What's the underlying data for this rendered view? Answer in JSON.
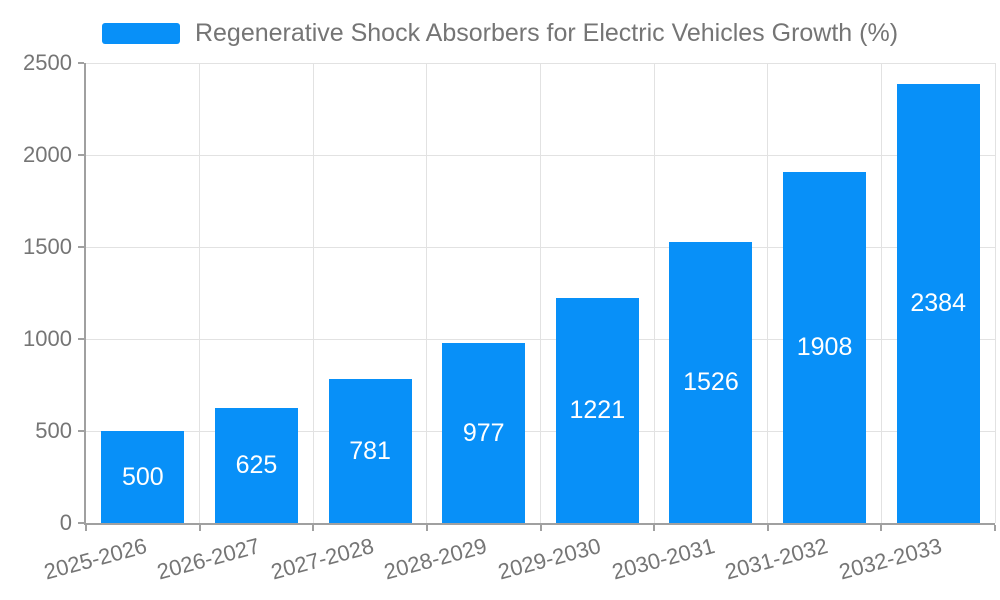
{
  "chart_data": {
    "type": "bar",
    "legend": {
      "label": "Regenerative Shock Absorbers for Electric Vehicles Growth (%)",
      "position": "top"
    },
    "categories": [
      "2025-2026",
      "2026-2027",
      "2027-2028",
      "2028-2029",
      "2029-2030",
      "2030-2031",
      "2031-2032",
      "2032-2033"
    ],
    "values": [
      500,
      625,
      781,
      977,
      1221,
      1526,
      1908,
      2384
    ],
    "value_labels_shown": true,
    "xlabel": "",
    "ylabel": "",
    "ylim": [
      0,
      2500
    ],
    "yticks": [
      0,
      500,
      1000,
      1500,
      2000,
      2500
    ],
    "grid": true,
    "x_label_rotation_deg": -15,
    "colors": {
      "bar": "#0890f8",
      "grid": "#e2e2e2",
      "axis": "#a0a0a0",
      "axis_text": "#757575",
      "value_label": "#ffffff",
      "background": "#ffffff"
    }
  }
}
